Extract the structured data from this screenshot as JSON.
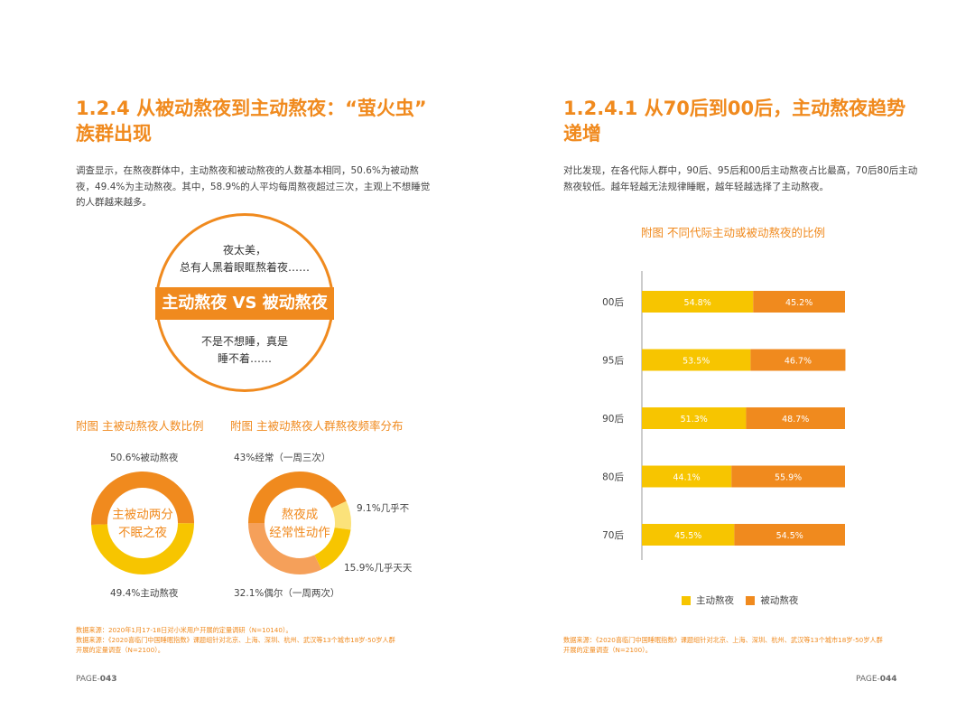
{
  "left": {
    "title_line1": "1.2.4  从被动熬夜到主动熬夜：“萤火虫”",
    "title_line2": "族群出现",
    "para": [
      "调查显示，在熬夜群体中，主动熬夜和被动熬夜的人数基本相同，50.6%为被动熬",
      "夜，49.4%为主动熬夜。其中，58.9%的人平均每周熬夜超过三次，主观上不想睡觉",
      "的人群越来越多。"
    ],
    "bubble": {
      "top_line1": "夜太美，",
      "top_line2": "总有人黑着眼眶熬着夜……",
      "band": "主动熬夜 VS 被动熬夜",
      "bottom_line1": "不是不想睡，真是",
      "bottom_line2": "睡不着……"
    },
    "fig1": {
      "title": "附图  主被动熬夜人数比例",
      "label_top": "50.6%被动熬夜",
      "label_bottom": "49.4%主动熬夜",
      "center_line1": "主被动两分",
      "center_line2": "不眠之夜",
      "segments": [
        {
          "name": "被动熬夜",
          "percent": 50.6,
          "color": "#f08a1e"
        },
        {
          "name": "主动熬夜",
          "percent": 49.4,
          "color": "#f7c500"
        }
      ]
    },
    "fig2": {
      "title": "附图  主被动熬夜人群熬夜频率分布",
      "label_top": "43%经常（一周三次）",
      "label_right1": "9.1%几乎不",
      "label_right2": "15.9%几乎天天",
      "label_bottom": "32.1%偶尔（一周两次）",
      "center_line1": "熬夜成",
      "center_line2": "经常性动作",
      "segments": [
        {
          "name": "经常",
          "percent": 43.0,
          "color": "#f08a1e"
        },
        {
          "name": "几乎不",
          "percent": 9.1,
          "color": "#fbe27a"
        },
        {
          "name": "几乎天天",
          "percent": 15.9,
          "color": "#f7c500"
        },
        {
          "name": "偶尔",
          "percent": 32.1,
          "color": "#f5a05a"
        }
      ]
    },
    "source_line1": "数据来源：2020年1月17-18日对小米用户开展的定量调研（N=10140）。",
    "source_line2": "数据来源：《2020喜临门中国睡眠指数》课题组针对北京、上海、深圳、杭州、武汉等13个城市18岁-50岁人群",
    "source_line3": "开展的定量调查（N=2100）。",
    "page_prefix": "PAGE-",
    "page_num": "043"
  },
  "right": {
    "title_line1": "1.2.4.1  从70后到00后，主动熬夜趋势",
    "title_line2": "递增",
    "para": [
      "对比发现，在各代际人群中，90后、95后和00后主动熬夜占比最高，70后80后主动",
      "熬夜较低。越年轻越无法规律睡眠，越年轻越选择了主动熬夜。"
    ],
    "chart_title": "附图  不同代际主动或被动熬夜的比例",
    "source_line1": "数据来源：《2020喜临门中国睡眠指数》课题组针对北京、上海、深圳、杭州、武汉等13个城市18岁-50岁人群",
    "source_line2": "开展的定量调查（N=2100）。",
    "page_prefix": "PAGE-",
    "page_num": "044"
  },
  "chart_data": {
    "type": "bar",
    "orientation": "horizontal",
    "stacked": true,
    "title": "附图  不同代际主动或被动熬夜的比例",
    "categories": [
      "00后",
      "95后",
      "90后",
      "80后",
      "70后"
    ],
    "series": [
      {
        "name": "主动熬夜",
        "color": "#f7c500",
        "values": [
          54.8,
          53.5,
          51.3,
          44.1,
          45.5
        ],
        "labels": [
          "54.8%",
          "53.5%",
          "51.3%",
          "44.1%",
          "45.5%"
        ]
      },
      {
        "name": "被动熬夜",
        "color": "#f08a1e",
        "values": [
          45.2,
          46.7,
          48.7,
          55.9,
          54.5
        ],
        "labels": [
          "45.2%",
          "46.7%",
          "48.7%",
          "55.9%",
          "54.5%"
        ]
      }
    ],
    "xlim": [
      0,
      100
    ],
    "legend": "bottom"
  }
}
